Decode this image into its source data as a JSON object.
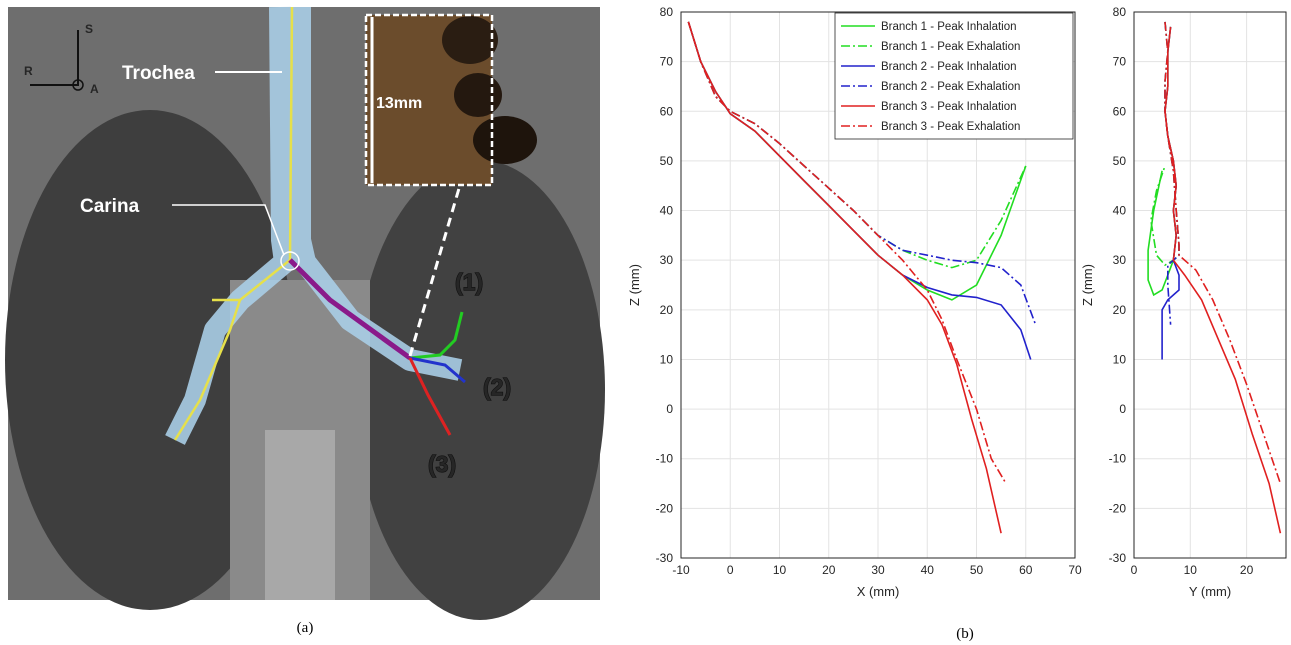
{
  "figure": {
    "panel_a": {
      "orientation": [
        "S",
        "R",
        "A"
      ],
      "trachea_label": "Trochea",
      "carina_label": "Carina",
      "scale_label": "13mm",
      "branch_labels": [
        "(1)",
        "(2)",
        "(3)"
      ]
    },
    "captions": [
      "(a)",
      "(b)"
    ]
  },
  "chart_data": [
    {
      "type": "line",
      "x_label": "X (mm)",
      "y_label": "Z (mm)",
      "xlim": [
        -10,
        70
      ],
      "ylim": [
        -30,
        80
      ],
      "xticks": [
        -10,
        0,
        10,
        20,
        30,
        40,
        50,
        60,
        70
      ],
      "yticks": [
        -30,
        -20,
        -10,
        0,
        10,
        20,
        30,
        40,
        50,
        60,
        70,
        80
      ],
      "grid": true,
      "legend": "upper right",
      "series": [
        {
          "name": "Branch 1 - Peak Inhalation",
          "color": "#22dd22",
          "line_style": "solid",
          "x": [
            -8.5,
            -6,
            -3,
            0,
            5,
            10,
            15,
            20,
            25,
            30,
            35,
            40,
            45,
            50,
            55,
            60
          ],
          "values": [
            78,
            70,
            64,
            59.5,
            56,
            51,
            46,
            41,
            36,
            31,
            27,
            24,
            22,
            25,
            35,
            49
          ]
        },
        {
          "name": "Branch 1 - Peak Exhalation",
          "color": "#22dd22",
          "line_style": "dash-dot",
          "x": [
            -8.5,
            -6,
            -3,
            0,
            5,
            10,
            15,
            20,
            25,
            30,
            35,
            40,
            45,
            50,
            55,
            60
          ],
          "values": [
            78,
            70,
            63,
            60,
            57.5,
            53.5,
            49,
            44.5,
            40,
            35,
            32,
            30,
            28.5,
            30,
            38,
            49
          ]
        },
        {
          "name": "Branch 2 - Peak Inhalation",
          "color": "#2222cc",
          "line_style": "solid",
          "x": [
            -8.5,
            -6,
            -3,
            0,
            5,
            10,
            15,
            20,
            25,
            30,
            35,
            40,
            45,
            50,
            55,
            59,
            61
          ],
          "values": [
            78,
            70,
            64,
            59.5,
            56,
            51,
            46,
            41,
            36,
            31,
            27,
            24.5,
            23,
            22.5,
            21,
            16,
            10
          ]
        },
        {
          "name": "Branch 2 - Peak Exhalation",
          "color": "#2222cc",
          "line_style": "dash-dot",
          "x": [
            -8.5,
            -6,
            -3,
            0,
            5,
            10,
            15,
            20,
            25,
            30,
            35,
            40,
            45,
            50,
            55,
            59,
            62
          ],
          "values": [
            78,
            70,
            63,
            60,
            57.5,
            53.5,
            49,
            44.5,
            40,
            35,
            32,
            31,
            30,
            29.5,
            28.5,
            25,
            17
          ]
        },
        {
          "name": "Branch 3 - Peak Inhalation",
          "color": "#e02020",
          "line_style": "solid",
          "x": [
            -8.5,
            -6,
            -3,
            0,
            5,
            10,
            15,
            20,
            25,
            30,
            35,
            40,
            43,
            46,
            49,
            52,
            55
          ],
          "values": [
            78,
            70,
            64,
            59.5,
            56,
            51,
            46,
            41,
            36,
            31,
            27,
            22,
            17,
            9,
            -2,
            -12,
            -25
          ]
        },
        {
          "name": "Branch 3 - Peak Exhalation",
          "color": "#e02020",
          "line_style": "dash-dot",
          "x": [
            -8.5,
            -6,
            -3,
            0,
            5,
            10,
            15,
            20,
            25,
            30,
            35,
            40,
            43,
            46,
            50,
            53,
            56
          ],
          "values": [
            78,
            70,
            63,
            60,
            57.5,
            53.5,
            49,
            44.5,
            40,
            35,
            30,
            24,
            18,
            10,
            0,
            -10,
            -15
          ]
        }
      ]
    },
    {
      "type": "line",
      "x_label": "Y (mm)",
      "y_label": "Z (mm)",
      "xlim": [
        0,
        27
      ],
      "ylim": [
        -30,
        80
      ],
      "xticks": [
        0,
        10,
        20
      ],
      "yticks": [
        -30,
        -20,
        -10,
        0,
        10,
        20,
        30,
        40,
        50,
        60,
        70,
        80
      ],
      "grid": true,
      "series": [
        {
          "color": "#22dd22",
          "line_style": "solid",
          "x": [
            6.5,
            6,
            6,
            5.5,
            6,
            7,
            7.5,
            7,
            7.5,
            7,
            6,
            5,
            3.5,
            2.5,
            2.5,
            3.5,
            5
          ],
          "values": [
            77,
            72,
            65,
            60,
            55,
            50,
            45,
            40,
            35,
            30,
            27,
            24,
            23,
            26,
            32,
            40,
            48
          ]
        },
        {
          "color": "#22dd22",
          "line_style": "dash-dot",
          "x": [
            5.5,
            6,
            5.5,
            5.5,
            6,
            7,
            7.5,
            8,
            8,
            7,
            5.5,
            4,
            3,
            4,
            5.5
          ],
          "values": [
            78,
            72,
            66,
            60,
            55,
            48,
            40,
            33,
            31,
            30,
            29,
            31,
            38,
            44,
            49
          ]
        },
        {
          "color": "#2222cc",
          "line_style": "solid",
          "x": [
            6.5,
            6,
            6,
            5.5,
            6,
            7,
            7.5,
            7,
            7.5,
            7,
            8,
            8,
            6,
            5,
            5
          ],
          "values": [
            77,
            72,
            65,
            60,
            55,
            50,
            45,
            40,
            35,
            30,
            27,
            24,
            22,
            20,
            10
          ]
        },
        {
          "color": "#2222cc",
          "line_style": "dash-dot",
          "x": [
            5.5,
            6,
            5.5,
            5.5,
            6,
            7,
            7.5,
            8,
            8,
            6,
            6,
            6.5
          ],
          "values": [
            78,
            72,
            66,
            60,
            55,
            48,
            40,
            33,
            31,
            29,
            25,
            17
          ]
        },
        {
          "color": "#e02020",
          "line_style": "solid",
          "x": [
            6.5,
            6,
            6,
            5.5,
            6,
            7,
            7.5,
            7,
            7.5,
            7,
            9,
            12,
            15,
            18,
            21,
            24,
            26
          ],
          "values": [
            77,
            72,
            65,
            60,
            55,
            50,
            45,
            40,
            35,
            30,
            27,
            22,
            14,
            6,
            -5,
            -15,
            -25
          ]
        },
        {
          "color": "#e02020",
          "line_style": "dash-dot",
          "x": [
            5.5,
            6,
            5.5,
            5.5,
            6,
            7,
            7.5,
            8,
            8,
            11,
            14,
            17,
            20,
            23,
            26
          ],
          "values": [
            78,
            72,
            66,
            60,
            55,
            48,
            40,
            33,
            31,
            28,
            22,
            14,
            5,
            -5,
            -15
          ]
        }
      ]
    }
  ]
}
